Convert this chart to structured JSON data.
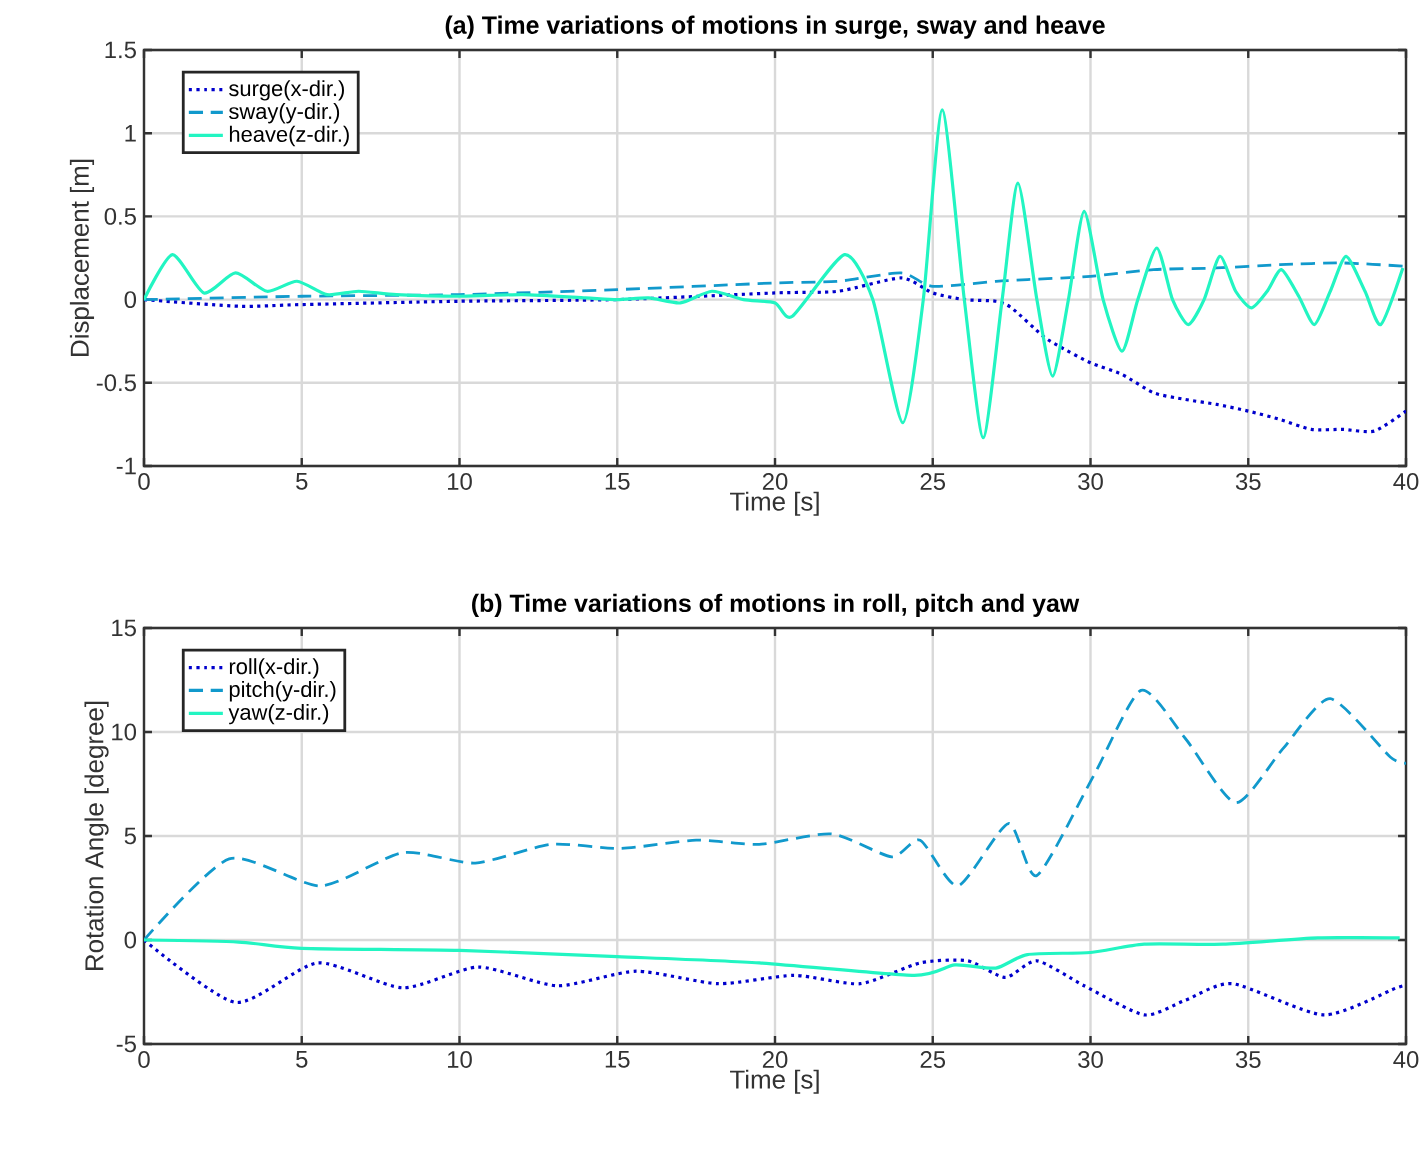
{
  "chart_data": [
    {
      "type": "line",
      "title": "(a) Time variations of motions in surge, sway and heave",
      "xlabel": "Time [s]",
      "ylabel": "Displacement [m]",
      "xlim": [
        0,
        40
      ],
      "ylim": [
        -1,
        1.5
      ],
      "xticks": [
        0,
        5,
        10,
        15,
        20,
        25,
        30,
        35,
        40
      ],
      "yticks": [
        -1,
        -0.5,
        0,
        0.5,
        1,
        1.5
      ],
      "grid": true,
      "legend": "top left",
      "series": [
        {
          "name": "surge(x-dir.)",
          "color": "#0000cc",
          "line_style": "dotted",
          "x": [
            0,
            3,
            5,
            10,
            15,
            20,
            22,
            24,
            25,
            26,
            27,
            27.5,
            28.5,
            29,
            30,
            31,
            32,
            33,
            34,
            35,
            36,
            37,
            38,
            39,
            40
          ],
          "values": [
            0,
            -0.04,
            -0.03,
            -0.01,
            0,
            0.04,
            0.05,
            0.13,
            0.04,
            0,
            -0.01,
            -0.05,
            -0.22,
            -0.28,
            -0.38,
            -0.45,
            -0.56,
            -0.6,
            -0.63,
            -0.67,
            -0.72,
            -0.78,
            -0.78,
            -0.79,
            -0.67
          ]
        },
        {
          "name": "sway(y-dir.)",
          "color": "#1199cc",
          "line_style": "dashed",
          "x": [
            0,
            5,
            10,
            15,
            20,
            22,
            24,
            25,
            27,
            28,
            30,
            32,
            34,
            36,
            38,
            40
          ],
          "values": [
            0,
            0.02,
            0.03,
            0.06,
            0.1,
            0.11,
            0.16,
            0.08,
            0.11,
            0.12,
            0.14,
            0.18,
            0.19,
            0.21,
            0.22,
            0.2
          ]
        },
        {
          "name": "heave(z-dir.)",
          "color": "#22f5c2",
          "line_style": "solid",
          "x": [
            0,
            0.9,
            1.9,
            2.9,
            3.9,
            4.85,
            5.8,
            6.8,
            8,
            10,
            12,
            14,
            15,
            16,
            17,
            18,
            19,
            20,
            20.55,
            22.2,
            23.1,
            24.05,
            24.7,
            25.3,
            26,
            26.6,
            27.2,
            27.7,
            28.3,
            28.8,
            29.3,
            29.8,
            30.4,
            31,
            31.5,
            32.1,
            32.6,
            33.1,
            33.6,
            34.1,
            34.6,
            35.1,
            35.6,
            36.05,
            36.6,
            37.1,
            37.6,
            38.1,
            38.7,
            39.2,
            39.9
          ],
          "values": [
            0,
            0.27,
            0.04,
            0.16,
            0.05,
            0.11,
            0.03,
            0.05,
            0.03,
            0.02,
            0.03,
            0.01,
            0,
            0.01,
            -0.02,
            0.05,
            0,
            -0.02,
            -0.1,
            0.27,
            0,
            -0.74,
            0,
            1.14,
            0,
            -0.83,
            0,
            0.7,
            0,
            -0.46,
            0,
            0.53,
            0,
            -0.31,
            0,
            0.31,
            0,
            -0.15,
            0,
            0.26,
            0.05,
            -0.05,
            0.05,
            0.18,
            0.02,
            -0.15,
            0.05,
            0.26,
            0.05,
            -0.15,
            0.19
          ]
        }
      ]
    },
    {
      "type": "line",
      "title": "(b) Time variations of motions in roll, pitch and yaw",
      "xlabel": "Time [s]",
      "ylabel": "Rotation Angle [degree]",
      "xlim": [
        0,
        40
      ],
      "ylim": [
        -5,
        15
      ],
      "xticks": [
        0,
        5,
        10,
        15,
        20,
        25,
        30,
        35,
        40
      ],
      "yticks": [
        -5,
        0,
        5,
        10,
        15
      ],
      "grid": true,
      "legend": "top left",
      "series": [
        {
          "name": "roll(x-dir.)",
          "color": "#0000cc",
          "line_style": "dotted",
          "x": [
            0,
            2.9,
            5.5,
            8.2,
            10.6,
            13.1,
            15.6,
            18.2,
            20.6,
            22.7,
            24.6,
            26.1,
            27.3,
            28.3,
            29.8,
            31.7,
            33,
            34.5,
            37.4,
            39.7,
            40
          ],
          "values": [
            0,
            -3,
            -1.1,
            -2.3,
            -1.3,
            -2.2,
            -1.5,
            -2.1,
            -1.7,
            -2.1,
            -1.1,
            -1,
            -1.8,
            -1,
            -2.2,
            -3.6,
            -2.9,
            -2.1,
            -3.6,
            -2.3,
            -2.2
          ]
        },
        {
          "name": "pitch(y-dir.)",
          "color": "#1199cc",
          "line_style": "dashed",
          "x": [
            0,
            2.7,
            5.6,
            8.2,
            10.5,
            12.9,
            15.1,
            17.5,
            19.5,
            21.8,
            23.7,
            24.6,
            25.8,
            27.4,
            28.3,
            30.1,
            31.6,
            33,
            34.6,
            36.1,
            37.6,
            39.5,
            40
          ],
          "values": [
            0,
            3.9,
            2.6,
            4.2,
            3.7,
            4.6,
            4.4,
            4.8,
            4.6,
            5.1,
            4,
            4.8,
            2.6,
            5.6,
            3.1,
            7.9,
            12,
            9.7,
            6.6,
            9.2,
            11.6,
            8.8,
            8.5
          ]
        },
        {
          "name": "yaw(z-dir.)",
          "color": "#22f5c2",
          "line_style": "solid",
          "x": [
            0,
            3,
            5,
            10,
            15,
            19.5,
            24.4,
            25.7,
            27,
            28,
            30,
            31.7,
            34.2,
            37.2,
            39.8
          ],
          "values": [
            0,
            -0.1,
            -0.4,
            -0.5,
            -0.8,
            -1.1,
            -1.7,
            -1.2,
            -1.35,
            -0.7,
            -0.6,
            -0.2,
            -0.2,
            0.1,
            0.1
          ]
        }
      ]
    }
  ]
}
